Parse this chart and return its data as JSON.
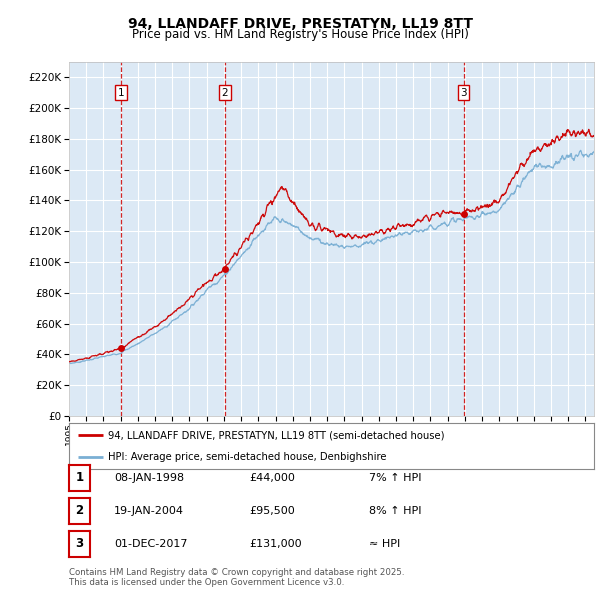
{
  "title": "94, LLANDAFF DRIVE, PRESTATYN, LL19 8TT",
  "subtitle": "Price paid vs. HM Land Registry's House Price Index (HPI)",
  "ylim": [
    0,
    230000
  ],
  "yticks": [
    0,
    20000,
    40000,
    60000,
    80000,
    100000,
    120000,
    140000,
    160000,
    180000,
    200000,
    220000
  ],
  "xlim_start": 1995.0,
  "xlim_end": 2025.5,
  "background_color": "#dce9f5",
  "grid_color": "#ffffff",
  "sale_color": "#cc0000",
  "hpi_color": "#7aafd4",
  "sale_dates_num": [
    1998.03,
    2004.05,
    2017.92
  ],
  "sale_prices": [
    44000,
    95500,
    131000
  ],
  "sale_labels": [
    "1",
    "2",
    "3"
  ],
  "vline_color": "#cc0000",
  "legend_sale": "94, LLANDAFF DRIVE, PRESTATYN, LL19 8TT (semi-detached house)",
  "legend_hpi": "HPI: Average price, semi-detached house, Denbighshire",
  "table_rows": [
    {
      "label": "1",
      "date": "08-JAN-1998",
      "price": "£44,000",
      "change": "7% ↑ HPI"
    },
    {
      "label": "2",
      "date": "19-JAN-2004",
      "price": "£95,500",
      "change": "8% ↑ HPI"
    },
    {
      "label": "3",
      "date": "01-DEC-2017",
      "price": "£131,000",
      "change": "≈ HPI"
    }
  ],
  "footer": "Contains HM Land Registry data © Crown copyright and database right 2025.\nThis data is licensed under the Open Government Licence v3.0."
}
